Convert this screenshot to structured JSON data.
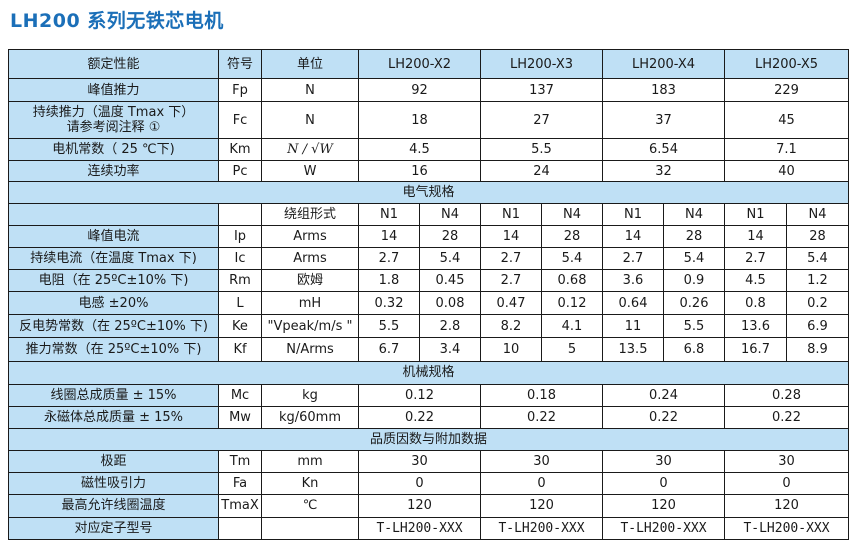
{
  "title": "LH200 系列无铁芯电机",
  "header": {
    "param": "额定性能",
    "symbol": "符号",
    "unit": "单位",
    "models": [
      "LH200-X2",
      "LH200-X3",
      "LH200-X4",
      "LH200-X5"
    ]
  },
  "rated": [
    {
      "label": "峰值推力",
      "symbol": "Fp",
      "unit": "N",
      "values": [
        "92",
        "137",
        "183",
        "229"
      ]
    },
    {
      "label": "持续推力（温度 Tmax 下）",
      "label2": "请参考阅注释 ①",
      "symbol": "Fc",
      "unit": "N",
      "values": [
        "18",
        "27",
        "37",
        "45"
      ]
    },
    {
      "label": "电机常数（ 25 ℃下)",
      "symbol": "Km",
      "unit": "N / √W",
      "values": [
        "4.5",
        "5.5",
        "6.54",
        "7.1"
      ]
    },
    {
      "label": "连续功率",
      "symbol": "Pc",
      "unit": "W",
      "values": [
        "16",
        "24",
        "32",
        "40"
      ]
    }
  ],
  "electrical": {
    "section": "电气规格",
    "winding_label": "绕组形式",
    "windings": [
      "N1",
      "N4",
      "N1",
      "N4",
      "N1",
      "N4",
      "N1",
      "N4"
    ],
    "rows": [
      {
        "label": "峰值电流",
        "symbol": "Ip",
        "unit": "Arms",
        "values": [
          "14",
          "28",
          "14",
          "28",
          "14",
          "28",
          "14",
          "28"
        ]
      },
      {
        "label": "持续电流（在温度 Tmax 下)",
        "symbol": "Ic",
        "unit": "Arms",
        "values": [
          "2.7",
          "5.4",
          "2.7",
          "5.4",
          "2.7",
          "5.4",
          "2.7",
          "5.4"
        ]
      },
      {
        "label": "电阻（在 25ºC±10% 下)",
        "symbol": "Rm",
        "unit": "欧姆",
        "values": [
          "1.8",
          "0.45",
          "2.7",
          "0.68",
          "3.6",
          "0.9",
          "4.5",
          "1.2"
        ]
      },
      {
        "label": "电感 ±20%",
        "symbol": "L",
        "unit": "mH",
        "values": [
          "0.32",
          "0.08",
          "0.47",
          "0.12",
          "0.64",
          "0.26",
          "0.8",
          "0.2"
        ]
      },
      {
        "label": "反电势常数（在 25ºC±10% 下)",
        "symbol": "Ke",
        "unit": "\"Vpeak/m/s \"",
        "values": [
          "5.5",
          "2.8",
          "8.2",
          "4.1",
          "11",
          "5.5",
          "13.6",
          "6.9"
        ]
      },
      {
        "label": "推力常数（在 25ºC±10% 下)",
        "symbol": "Kf",
        "unit": "N/Arms",
        "values": [
          "6.7",
          "3.4",
          "10",
          "5",
          "13.5",
          "6.8",
          "16.7",
          "8.9"
        ]
      }
    ]
  },
  "mechanical": {
    "section": "机械规格",
    "rows": [
      {
        "label": "线圈总成质量 ± 15%",
        "symbol": "Mc",
        "unit": "kg",
        "values": [
          "0.12",
          "0.18",
          "0.24",
          "0.28"
        ]
      },
      {
        "label": "永磁体总成质量 ± 15%",
        "symbol": "Mw",
        "unit": "kg/60mm",
        "values": [
          "0.22",
          "0.22",
          "0.22",
          "0.22"
        ]
      }
    ]
  },
  "quality": {
    "section": "品质因数与附加数据",
    "rows": [
      {
        "label": "极距",
        "symbol": "Tm",
        "unit": "mm",
        "values": [
          "30",
          "30",
          "30",
          "30"
        ]
      },
      {
        "label": "磁性吸引力",
        "symbol": "Fa",
        "unit": "Kn",
        "values": [
          "0",
          "0",
          "0",
          "0"
        ]
      },
      {
        "label": "最高允许线圈温度",
        "symbol": "TmaX",
        "unit": "℃",
        "values": [
          "120",
          "120",
          "120",
          "120"
        ]
      },
      {
        "label": "对应定子型号",
        "symbol": "",
        "unit": "",
        "values": [
          "T-LH200-XXX",
          "T-LH200-XXX",
          "T-LH200-XXX",
          "T-LH200-XXX"
        ]
      }
    ]
  }
}
